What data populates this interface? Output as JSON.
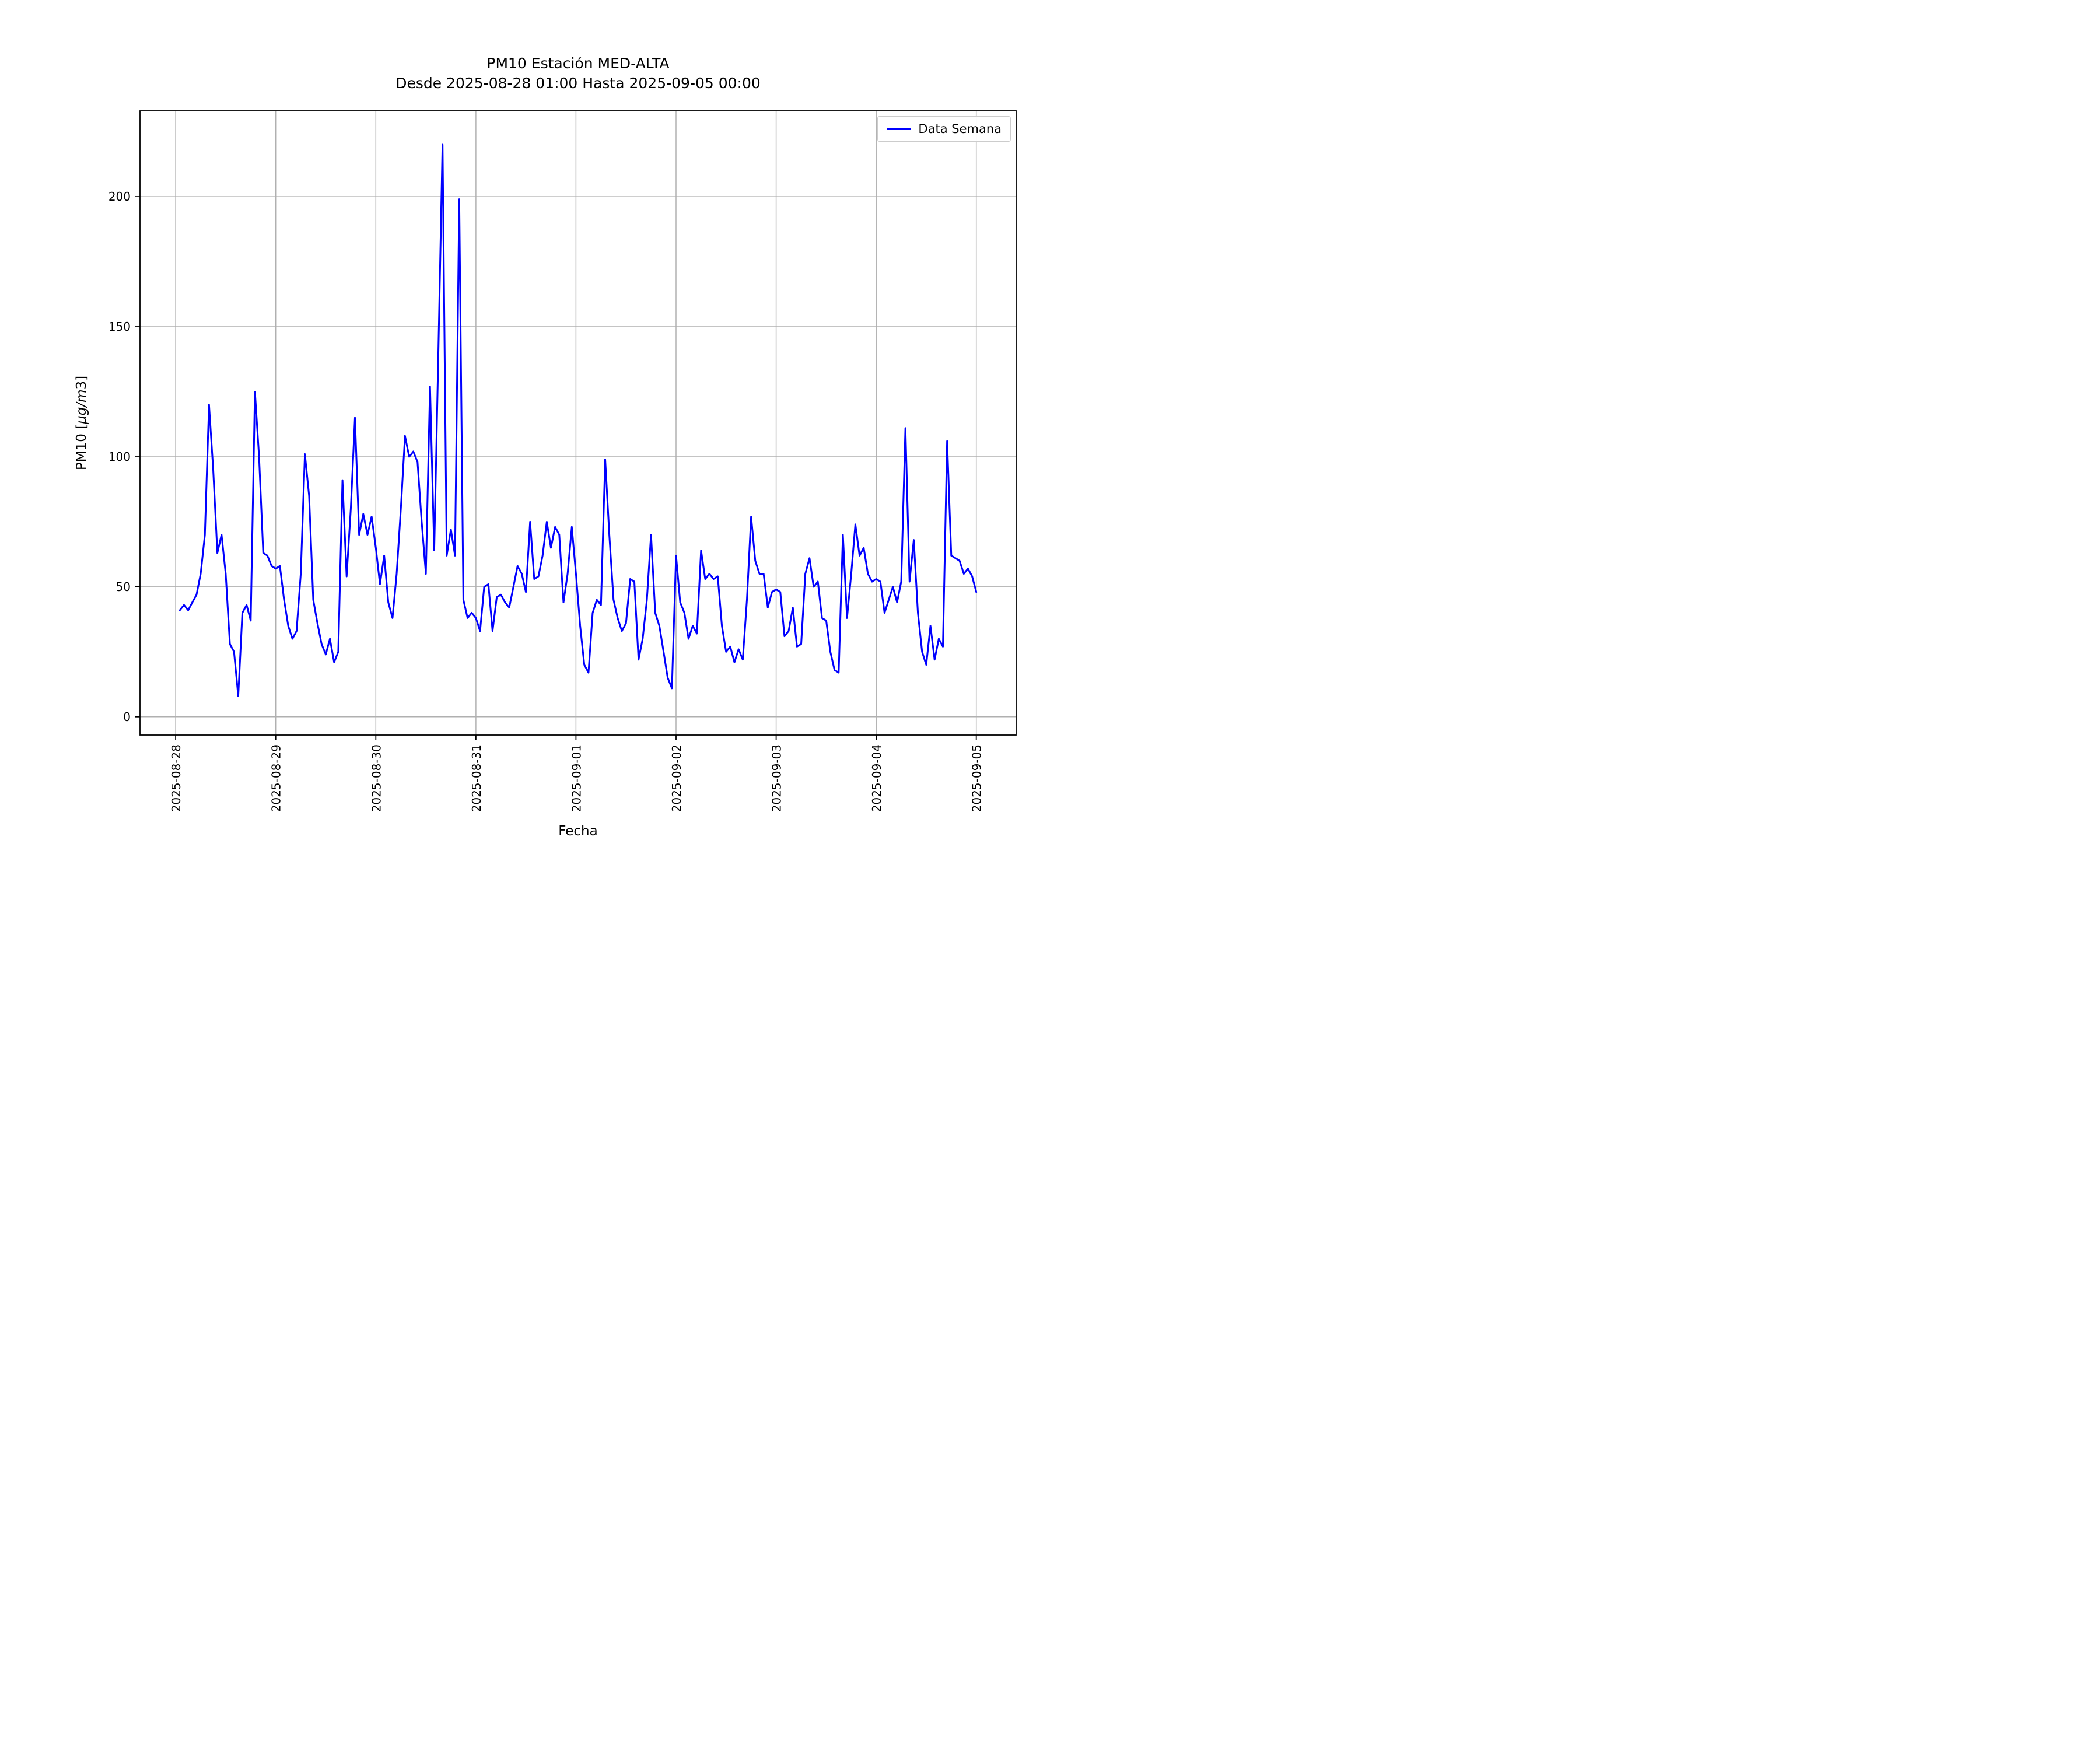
{
  "title": {
    "line1": "PM10 Estación MED-ALTA",
    "line2": "Desde 2025-08-28 01:00 Hasta 2025-09-05 00:00"
  },
  "chart_data": {
    "type": "line",
    "title": "PM10 Estación MED-ALTA",
    "subtitle": "Desde 2025-08-28 01:00 Hasta 2025-09-05 00:00",
    "xlabel": "Fecha",
    "ylabel": "PM10 [μg/m3]",
    "ylabel_parts": {
      "before": "PM10 [",
      "italic": "μg/m",
      "after": "3]"
    },
    "legend": {
      "position": "upper right",
      "entries": [
        "Data Semana"
      ]
    },
    "grid": true,
    "x_start": "2025-08-28 01:00",
    "x_end": "2025-09-05 00:00",
    "interval_hours": 1,
    "x_start_hour": 1,
    "x_tick_hours": [
      0,
      24,
      48,
      72,
      96,
      120,
      144,
      168,
      192
    ],
    "x_tick_labels": [
      "2025-08-28",
      "2025-08-29",
      "2025-08-30",
      "2025-08-31",
      "2025-09-01",
      "2025-09-02",
      "2025-09-03",
      "2025-09-04",
      "2025-09-05"
    ],
    "y_ticks": [
      0,
      50,
      100,
      150,
      200
    ],
    "xlim_hours": [
      -8.55,
      201.55
    ],
    "ylim": [
      -7,
      233
    ],
    "series": [
      {
        "name": "Data Semana",
        "color": "#0000ff",
        "values": [
          41,
          43,
          41,
          44,
          47,
          55,
          70,
          120,
          95,
          63,
          70,
          55,
          28,
          25,
          8,
          40,
          43,
          37,
          125,
          100,
          63,
          62,
          58,
          57,
          58,
          45,
          35,
          30,
          33,
          55,
          101,
          85,
          45,
          36,
          28,
          24,
          30,
          21,
          25,
          91,
          54,
          80,
          115,
          70,
          78,
          70,
          77,
          65,
          51,
          62,
          44,
          38,
          55,
          80,
          108,
          100,
          102,
          98,
          75,
          55,
          127,
          64,
          140,
          220,
          62,
          72,
          62,
          199,
          45,
          38,
          40,
          38,
          33,
          50,
          51,
          33,
          46,
          47,
          44,
          42,
          50,
          58,
          55,
          48,
          75,
          53,
          54,
          62,
          75,
          65,
          73,
          70,
          44,
          55,
          73,
          55,
          35,
          20,
          17,
          40,
          45,
          43,
          99,
          70,
          45,
          38,
          33,
          36,
          53,
          52,
          22,
          30,
          45,
          70,
          40,
          35,
          25,
          15,
          11,
          62,
          44,
          40,
          30,
          35,
          32,
          64,
          53,
          55,
          53,
          54,
          35,
          25,
          27,
          21,
          26,
          22,
          45,
          77,
          60,
          55,
          55,
          42,
          48,
          49,
          48,
          31,
          33,
          42,
          27,
          28,
          55,
          61,
          50,
          52,
          38,
          37,
          25,
          18,
          17,
          70,
          38,
          55,
          74,
          62,
          65,
          55,
          52,
          53,
          52,
          40,
          45,
          50,
          44,
          52,
          111,
          52,
          68,
          40,
          25,
          20,
          35,
          22,
          30,
          27,
          106,
          62,
          61,
          60,
          55,
          57,
          54,
          48
        ]
      }
    ]
  },
  "colors": {
    "line": "#0000ff",
    "grid": "#b0b0b0",
    "axes": "#000000",
    "text": "#000000",
    "legend_border": "#cccccc",
    "background": "#ffffff"
  }
}
